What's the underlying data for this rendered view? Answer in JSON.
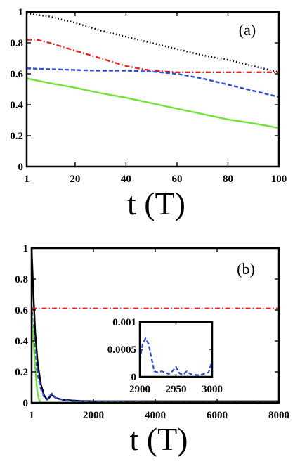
{
  "chart_data": [
    {
      "type": "line",
      "panel_label": "(a)",
      "xlabel": "t  (T)",
      "ylabel": "",
      "xlim": [
        1,
        100
      ],
      "ylim": [
        0,
        1
      ],
      "x_ticks": [
        1,
        20,
        40,
        60,
        80,
        100
      ],
      "y_ticks": [
        0,
        0.2,
        0.4,
        0.6,
        0.8,
        1
      ],
      "x_tick_labels": [
        "1",
        "20",
        "40",
        "60",
        "80",
        "100"
      ],
      "y_tick_labels": [
        "0",
        "0.2",
        "0.4",
        "0.6",
        "0.8",
        "1"
      ],
      "series": [
        {
          "color": "#000000",
          "style": "dotted",
          "x": [
            1,
            10,
            20,
            30,
            40,
            50,
            60,
            70,
            80,
            90,
            100
          ],
          "y": [
            0.99,
            0.97,
            0.93,
            0.88,
            0.84,
            0.8,
            0.76,
            0.72,
            0.69,
            0.65,
            0.61
          ]
        },
        {
          "color": "#e8231e",
          "style": "dashdot",
          "x": [
            1,
            5,
            10,
            20,
            30,
            40,
            50,
            60,
            70,
            80,
            90,
            100
          ],
          "y": [
            0.82,
            0.82,
            0.8,
            0.75,
            0.7,
            0.65,
            0.62,
            0.61,
            0.61,
            0.61,
            0.61,
            0.61
          ]
        },
        {
          "color": "#2e4fd8",
          "style": "dashed",
          "x": [
            1,
            10,
            20,
            30,
            40,
            50,
            60,
            70,
            80,
            90,
            100
          ],
          "y": [
            0.635,
            0.63,
            0.625,
            0.62,
            0.62,
            0.615,
            0.6,
            0.57,
            0.53,
            0.49,
            0.45
          ]
        },
        {
          "color": "#72e23a",
          "style": "solid",
          "x": [
            1,
            10,
            20,
            30,
            40,
            50,
            60,
            70,
            80,
            90,
            100
          ],
          "y": [
            0.57,
            0.54,
            0.51,
            0.475,
            0.445,
            0.41,
            0.375,
            0.34,
            0.305,
            0.28,
            0.25
          ]
        }
      ]
    },
    {
      "type": "line",
      "panel_label": "(b)",
      "xlabel": "t  (T)",
      "ylabel": "",
      "xlim": [
        1,
        8000
      ],
      "ylim": [
        0,
        1
      ],
      "x_ticks": [
        1,
        2000,
        4000,
        6000,
        8000
      ],
      "y_ticks": [
        0,
        0.2,
        0.4,
        0.6,
        0.8,
        1
      ],
      "x_tick_labels": [
        "1",
        "2000",
        "4000",
        "6000",
        "8000"
      ],
      "y_tick_labels": [
        "0",
        "0.2",
        "0.4",
        "0.6",
        "0.8",
        "1"
      ],
      "series": [
        {
          "color": "#000000",
          "style": "solid",
          "x": [
            1,
            60,
            120,
            200,
            300,
            400,
            500,
            650,
            800,
            1000,
            1300,
            1600,
            2000,
            3000,
            4000,
            5000,
            6000,
            7000,
            8000
          ],
          "y": [
            1.0,
            0.7,
            0.45,
            0.25,
            0.12,
            0.05,
            0.02,
            0.05,
            0.03,
            0.02,
            0.015,
            0.012,
            0.01,
            0.01,
            0.01,
            0.01,
            0.01,
            0.01,
            0.01
          ]
        },
        {
          "color": "#e8231e",
          "style": "dashdot",
          "x": [
            1,
            8000
          ],
          "y": [
            0.61,
            0.61
          ]
        },
        {
          "color": "#2e4fd8",
          "style": "dashed",
          "x": [
            1,
            60,
            120,
            200,
            300,
            400,
            500,
            650,
            800,
            1000,
            1300,
            1600,
            2000,
            3000,
            5000,
            8000
          ],
          "y": [
            0.63,
            0.45,
            0.3,
            0.18,
            0.09,
            0.04,
            0.02,
            0.06,
            0.03,
            0.02,
            0.01,
            0.01,
            0.005,
            0.003,
            0.002,
            0.002
          ]
        },
        {
          "color": "#72e23a",
          "style": "solid",
          "x": [
            1,
            60,
            120,
            180,
            240,
            300,
            8000
          ],
          "y": [
            0.57,
            0.4,
            0.22,
            0.08,
            0.02,
            0.0,
            0.0
          ]
        }
      ],
      "inset": {
        "xlim": [
          2900,
          3000
        ],
        "ylim": [
          0,
          0.001
        ],
        "x_ticks": [
          2900,
          2950,
          3000
        ],
        "y_ticks": [
          0,
          0.0005,
          0.001
        ],
        "x_tick_labels": [
          "2900",
          "2950",
          "3000"
        ],
        "y_tick_labels": [
          "0",
          "0.0005",
          "0.001"
        ],
        "series": [
          {
            "color": "#2e4fd8",
            "style": "dashed",
            "x": [
              2900,
              2904,
              2908,
              2912,
              2916,
              2920,
              2925,
              2930,
              2935,
              2940,
              2945,
              2950,
              2955,
              2960,
              2965,
              2970,
              2975,
              2980,
              2985,
              2990,
              2995,
              3000
            ],
            "y": [
              0.0003,
              0.0006,
              0.0007,
              0.0006,
              0.00035,
              0.0001,
              8e-05,
              0.0001,
              8e-05,
              5e-05,
              0.0001,
              0.00018,
              6e-05,
              4e-05,
              0.0001,
              5e-05,
              4e-05,
              3e-05,
              4e-05,
              6e-05,
              8e-05,
              0.0003
            ]
          },
          {
            "color": "#72e23a",
            "style": "solid",
            "x": [
              2900,
              3000
            ],
            "y": [
              0.0,
              0.0
            ]
          }
        ]
      }
    }
  ]
}
